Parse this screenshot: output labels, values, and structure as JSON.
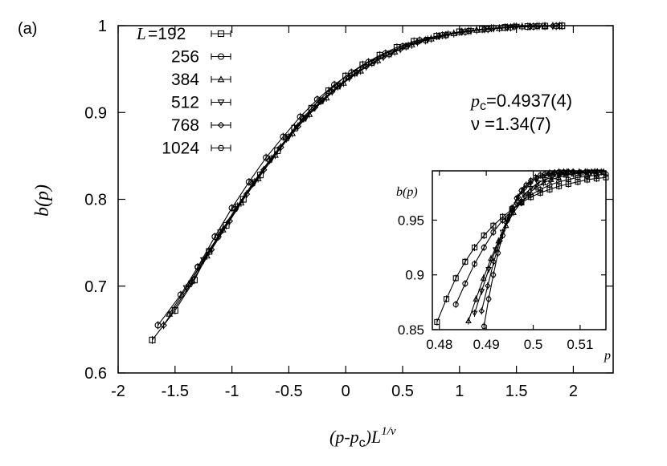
{
  "chart_data": [
    {
      "type": "scatter",
      "panel_label": "(a)",
      "ylabel": "b(p)",
      "xlabel": {
        "base": "(p-p",
        "sub": "c",
        "mid": ")L",
        "sup": "1/ν"
      },
      "xlim": [
        -2,
        2.35
      ],
      "ylim": [
        0.6,
        1.0
      ],
      "xticks": [
        "-2",
        "-1.5",
        "-1",
        "-0.5",
        "0",
        "0.5",
        "1",
        "1.5",
        "2"
      ],
      "xtick_values": [
        -2,
        -1.5,
        -1,
        -0.5,
        0,
        0.5,
        1,
        1.5,
        2
      ],
      "yticks": [
        "0.6",
        "0.7",
        "0.8",
        "0.9",
        "1"
      ],
      "ytick_values": [
        0.6,
        0.7,
        0.8,
        0.9,
        1.0
      ],
      "annotations": {
        "pc_prefix": "p",
        "pc_sub": "c",
        "pc_value": "=0.4937(4)",
        "nu_symbol": "ν",
        "nu_value": " =1.34(7)"
      },
      "legend_label_prefix": "L",
      "series": [
        {
          "name": "=192",
          "marker": "square",
          "x": [
            -1.7,
            -1.5,
            -1.33,
            -1.2,
            -1.05,
            -0.9,
            -0.75,
            -0.6,
            -0.45,
            -0.3,
            -0.15,
            0,
            0.15,
            0.3,
            0.45,
            0.6,
            0.8,
            1.0,
            1.2,
            1.4,
            1.6,
            1.75,
            1.9
          ],
          "y": [
            0.638,
            0.672,
            0.707,
            0.74,
            0.77,
            0.8,
            0.828,
            0.856,
            0.882,
            0.905,
            0.925,
            0.942,
            0.955,
            0.966,
            0.975,
            0.982,
            0.988,
            0.993,
            0.996,
            0.998,
            0.999,
            0.9995,
            0.9998
          ]
        },
        {
          "name": "256",
          "marker": "circle",
          "x": [
            -1.65,
            -1.45,
            -1.3,
            -1.15,
            -1.0,
            -0.85,
            -0.7,
            -0.55,
            -0.4,
            -0.25,
            -0.1,
            0.05,
            0.2,
            0.35,
            0.5,
            0.65,
            0.85,
            1.05,
            1.25,
            1.45,
            1.65,
            1.85
          ],
          "y": [
            0.655,
            0.69,
            0.722,
            0.757,
            0.79,
            0.82,
            0.848,
            0.872,
            0.895,
            0.915,
            0.932,
            0.946,
            0.958,
            0.968,
            0.976,
            0.983,
            0.989,
            0.993,
            0.996,
            0.998,
            0.999,
            0.9995
          ]
        },
        {
          "name": "384",
          "marker": "triangle-up",
          "x": [
            -1.55,
            -1.38,
            -1.22,
            -1.08,
            -0.92,
            -0.77,
            -0.62,
            -0.47,
            -0.32,
            -0.17,
            -0.02,
            0.13,
            0.28,
            0.43,
            0.58,
            0.75,
            0.95,
            1.15,
            1.35,
            1.55,
            1.75
          ],
          "y": [
            0.668,
            0.702,
            0.735,
            0.765,
            0.796,
            0.824,
            0.851,
            0.876,
            0.898,
            0.917,
            0.934,
            0.948,
            0.96,
            0.97,
            0.978,
            0.985,
            0.991,
            0.995,
            0.997,
            0.999,
            0.9995
          ]
        },
        {
          "name": "512",
          "marker": "triangle-down",
          "x": [
            -1.4,
            -1.25,
            -1.1,
            -0.95,
            -0.8,
            -0.65,
            -0.5,
            -0.35,
            -0.2,
            -0.05,
            0.1,
            0.25,
            0.4,
            0.55,
            0.72,
            0.9,
            1.1,
            1.3,
            1.5,
            1.7
          ],
          "y": [
            0.698,
            0.73,
            0.762,
            0.792,
            0.82,
            0.847,
            0.872,
            0.894,
            0.914,
            0.931,
            0.946,
            0.958,
            0.968,
            0.977,
            0.984,
            0.99,
            0.994,
            0.997,
            0.999,
            0.9995
          ]
        },
        {
          "name": "768",
          "marker": "diamond",
          "x": [
            -1.6,
            -1.35,
            -1.18,
            -1.02,
            -0.87,
            -0.72,
            -0.57,
            -0.42,
            -0.27,
            -0.12,
            0.03,
            0.18,
            0.33,
            0.48,
            0.63,
            0.82,
            1.02,
            1.22,
            1.42,
            1.62,
            1.82
          ],
          "y": [
            0.655,
            0.705,
            0.742,
            0.775,
            0.806,
            0.834,
            0.86,
            0.884,
            0.906,
            0.924,
            0.94,
            0.953,
            0.964,
            0.973,
            0.981,
            0.988,
            0.993,
            0.996,
            0.998,
            0.999,
            0.9997
          ]
        },
        {
          "name": "1024",
          "marker": "hexagon",
          "x": [
            -1.3,
            -1.12,
            -0.97,
            -0.82,
            -0.67,
            -0.52,
            -0.37,
            -0.22,
            -0.07,
            0.08,
            0.23,
            0.38,
            0.53,
            0.7,
            0.88,
            1.08,
            1.28,
            1.48,
            1.68,
            1.88
          ],
          "y": [
            0.722,
            0.757,
            0.789,
            0.818,
            0.845,
            0.87,
            0.893,
            0.913,
            0.93,
            0.945,
            0.957,
            0.967,
            0.976,
            0.983,
            0.989,
            0.994,
            0.997,
            0.999,
            0.9995,
            0.9998
          ]
        }
      ]
    },
    {
      "type": "scatter",
      "inset": true,
      "ylabel": "b(p)",
      "xlabel": "p",
      "xlim": [
        0.4785,
        0.5155
      ],
      "ylim": [
        0.85,
        0.995
      ],
      "xticks": [
        "0.48",
        "0.49",
        "0.5",
        "0.51"
      ],
      "xtick_values": [
        0.48,
        0.49,
        0.5,
        0.51
      ],
      "yticks": [
        "0.85",
        "0.9",
        "0.95"
      ],
      "ytick_values": [
        0.85,
        0.9,
        0.95
      ],
      "series": [
        {
          "name": "192",
          "marker": "square",
          "x": [
            0.4795,
            0.4815,
            0.4835,
            0.4855,
            0.4875,
            0.4895,
            0.4915,
            0.4935,
            0.4955,
            0.4975,
            0.4995,
            0.5015,
            0.5035,
            0.5055,
            0.5075,
            0.5095,
            0.5115,
            0.5135,
            0.5155
          ],
          "y": [
            0.857,
            0.878,
            0.897,
            0.912,
            0.925,
            0.936,
            0.945,
            0.953,
            0.96,
            0.966,
            0.971,
            0.975,
            0.978,
            0.981,
            0.983,
            0.985,
            0.987,
            0.988,
            0.989
          ]
        },
        {
          "name": "256",
          "marker": "circle",
          "x": [
            0.4835,
            0.4855,
            0.4875,
            0.4895,
            0.4915,
            0.4935,
            0.4955,
            0.4975,
            0.4995,
            0.5015,
            0.5035,
            0.5055,
            0.5075,
            0.5095,
            0.5115,
            0.5135,
            0.5155
          ],
          "y": [
            0.873,
            0.892,
            0.91,
            0.925,
            0.939,
            0.95,
            0.959,
            0.967,
            0.973,
            0.978,
            0.982,
            0.985,
            0.987,
            0.989,
            0.99,
            0.991,
            0.992
          ]
        },
        {
          "name": "384",
          "marker": "triangle-up",
          "x": [
            0.4862,
            0.4878,
            0.4894,
            0.491,
            0.4926,
            0.4942,
            0.4958,
            0.4974,
            0.499,
            0.5006,
            0.5022,
            0.5038,
            0.5054,
            0.507,
            0.5086,
            0.5102,
            0.5118,
            0.5134,
            0.515
          ],
          "y": [
            0.858,
            0.878,
            0.897,
            0.915,
            0.931,
            0.945,
            0.957,
            0.966,
            0.974,
            0.98,
            0.984,
            0.987,
            0.989,
            0.991,
            0.992,
            0.993,
            0.993,
            0.994,
            0.994
          ]
        },
        {
          "name": "512",
          "marker": "triangle-down",
          "x": [
            0.4875,
            0.489,
            0.4905,
            0.492,
            0.4935,
            0.495,
            0.4965,
            0.498,
            0.4995,
            0.501,
            0.5025,
            0.504,
            0.5055,
            0.507,
            0.5085,
            0.51,
            0.5115,
            0.513,
            0.5145
          ],
          "y": [
            0.865,
            0.885,
            0.905,
            0.923,
            0.939,
            0.953,
            0.964,
            0.973,
            0.979,
            0.984,
            0.987,
            0.989,
            0.991,
            0.992,
            0.993,
            0.993,
            0.994,
            0.994,
            0.994
          ]
        },
        {
          "name": "768",
          "marker": "diamond",
          "x": [
            0.489,
            0.4903,
            0.4916,
            0.4929,
            0.4942,
            0.4955,
            0.4968,
            0.4981,
            0.4994,
            0.5007,
            0.502,
            0.5033,
            0.5046,
            0.5059,
            0.5072,
            0.5085,
            0.5098,
            0.5111,
            0.5124,
            0.5137
          ],
          "y": [
            0.867,
            0.89,
            0.912,
            0.931,
            0.948,
            0.961,
            0.971,
            0.979,
            0.984,
            0.988,
            0.99,
            0.992,
            0.993,
            0.993,
            0.994,
            0.994,
            0.994,
            0.994,
            0.994,
            0.994
          ]
        },
        {
          "name": "1024",
          "marker": "hexagon",
          "x": [
            0.4895,
            0.4905,
            0.4915,
            0.4925,
            0.4935,
            0.4945,
            0.4955,
            0.4965,
            0.4975,
            0.4985,
            0.4995,
            0.5005,
            0.5015,
            0.5025,
            0.5035,
            0.5045,
            0.5055,
            0.5065,
            0.5075,
            0.5085
          ],
          "y": [
            0.853,
            0.878,
            0.9,
            0.92,
            0.936,
            0.95,
            0.961,
            0.97,
            0.977,
            0.982,
            0.986,
            0.989,
            0.991,
            0.992,
            0.993,
            0.993,
            0.994,
            0.994,
            0.994,
            0.994
          ]
        }
      ]
    }
  ]
}
